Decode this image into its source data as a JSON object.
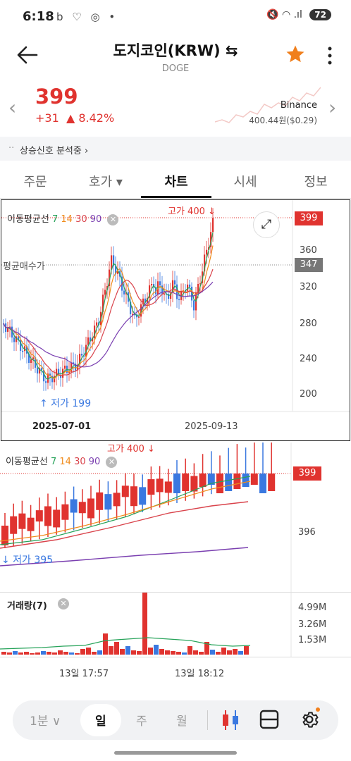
{
  "status_bar": {
    "time": "6:18",
    "icons": "b ♡ ◎ •",
    "right_icons": "🔇 ◠ .ıl",
    "battery": "72"
  },
  "header": {
    "title": "도지코인(KRW) ⇆",
    "subtitle": "DOGE",
    "back_icon": "arrow-left-icon",
    "star_icon": "star-icon",
    "more_icon": "more-vertical-icon"
  },
  "price": {
    "current": "399",
    "change": "+31",
    "change_pct": "▲ 8.42%",
    "exchange": "Binance",
    "exchange_price": "400.44원($0.29)"
  },
  "signal": {
    "text": "상승신호 분석중 ›"
  },
  "tabs": [
    {
      "label": "주문"
    },
    {
      "label": "호가 ▾"
    },
    {
      "label": "차트"
    },
    {
      "label": "시세"
    },
    {
      "label": "정보"
    }
  ],
  "chart_main": {
    "ma_label": "이동평균선",
    "ma_periods": [
      "7",
      "14",
      "30",
      "90"
    ],
    "ma_colors": [
      "#27a35a",
      "#f08c1c",
      "#d9434b",
      "#7a3fb0"
    ],
    "high_label": "고가 400 ↓",
    "low_label": "↑ 저가 199",
    "avg_label": "평균매수가",
    "price_tag": "399",
    "avg_tag": "347",
    "y_ticks": [
      "360",
      "320",
      "280",
      "240",
      "200"
    ],
    "x_labels": [
      "2025-07-01",
      "2025-09-13"
    ]
  },
  "chart_minute": {
    "ma_label": "이동평균선",
    "ma_periods": [
      "7",
      "14",
      "30",
      "90"
    ],
    "high_label": "고가 400 ↓",
    "low_label": "↓ 저가 395",
    "price_tag": "399",
    "y_tick": "396"
  },
  "volume": {
    "label": "거래량(7)",
    "y_ticks": [
      "4.99M",
      "3.26M",
      "1.53M"
    ]
  },
  "time_axis": [
    "13일 17:57",
    "13일 18:12"
  ],
  "bottom_bar": {
    "interval": "1분 ∨",
    "periods": [
      "일",
      "주",
      "월"
    ],
    "candle_icon": "candlestick-icon",
    "layout_icon": "split-layout-icon",
    "settings_icon": "gear-icon"
  },
  "colors": {
    "up": "#e0332f",
    "down": "#3a78e0",
    "accent": "#f07f1c"
  }
}
